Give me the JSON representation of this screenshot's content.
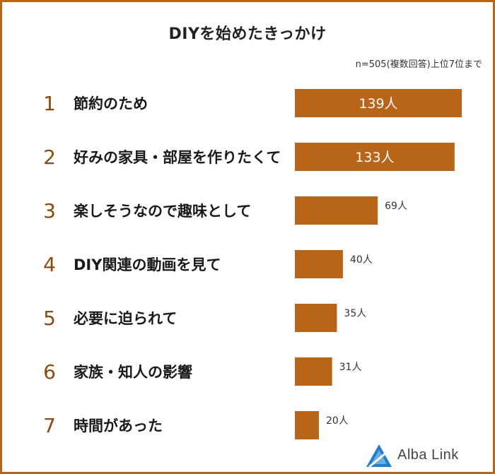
{
  "chart_data": {
    "type": "bar",
    "orientation": "horizontal",
    "title": "DIYを始めたきっかけ",
    "subtitle": "n=505(複数回答)上位7位まで",
    "ranks": [
      "1",
      "2",
      "3",
      "4",
      "5",
      "6",
      "7"
    ],
    "categories": [
      "節約のため",
      "好みの家具・部屋を作りたくて",
      "楽しそうなので趣味として",
      "DIY関連の動画を見て",
      "必要に迫られて",
      "家族・知人の影響",
      "時間があった"
    ],
    "values": [
      139,
      133,
      69,
      40,
      35,
      31,
      20
    ],
    "value_labels": [
      "139人",
      "133人",
      "69人",
      "40人",
      "35人",
      "31人",
      "20人"
    ],
    "bar_color": "#b8651a",
    "rank_color": "#8b4a0f",
    "legend": "none",
    "grid": false
  },
  "brand": {
    "name": "Alba Link",
    "icon": "triangle-logo-icon",
    "color": "#1f7fd0"
  },
  "frame_color": "#b8651a"
}
